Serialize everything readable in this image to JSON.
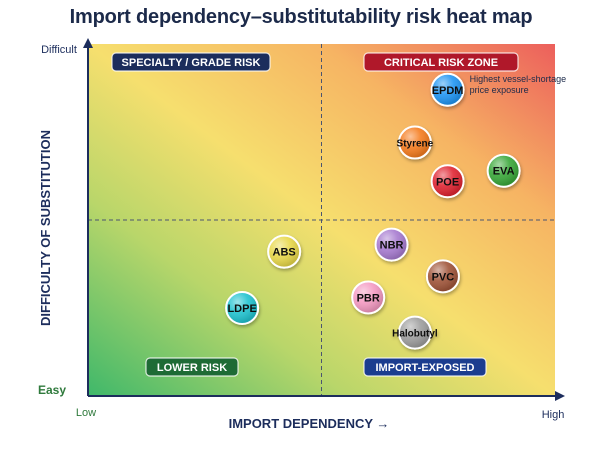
{
  "chart_data": {
    "type": "scatter",
    "title": "Import dependency–substitutability risk heat map",
    "xlabel": "IMPORT DEPENDENCY →",
    "ylabel": "DIFFICULTY OF SUBSTITUTION",
    "x_ticks": {
      "low": "Low",
      "high": "High"
    },
    "y_ticks": {
      "low": "Easy",
      "high": "Difficult"
    },
    "xlim": [
      0,
      100
    ],
    "ylim": [
      0,
      100
    ],
    "grid": false,
    "quadrant_dividers": {
      "x": 50,
      "y": 50
    },
    "quadrants": [
      {
        "label": "SPECIALTY / GRADE RISK",
        "position": "top-left",
        "color": "#1c2d5c"
      },
      {
        "label": "CRITICAL RISK ZONE",
        "position": "top-right",
        "color": "#b0182a"
      },
      {
        "label": "LOWER RISK",
        "position": "bottom-left",
        "color": "#1e6b35"
      },
      {
        "label": "IMPORT-EXPOSED",
        "position": "bottom-right",
        "color": "#1b3d8f"
      }
    ],
    "points": [
      {
        "label": "EPDM",
        "x": 77,
        "y": 87,
        "color": "#2196f3"
      },
      {
        "label": "Styrene",
        "x": 70,
        "y": 72,
        "color": "#f57c1f"
      },
      {
        "label": "POE",
        "x": 77,
        "y": 61,
        "color": "#e02532"
      },
      {
        "label": "EVA",
        "x": 89,
        "y": 64,
        "color": "#3aa83a"
      },
      {
        "label": "NBR",
        "x": 65,
        "y": 43,
        "color": "#a77bd0"
      },
      {
        "label": "ABS",
        "x": 42,
        "y": 41,
        "color": "#e8d84a"
      },
      {
        "label": "PVC",
        "x": 76,
        "y": 34,
        "color": "#a0553a"
      },
      {
        "label": "PBR",
        "x": 60,
        "y": 28,
        "color": "#f49ac2"
      },
      {
        "label": "LDPE",
        "x": 33,
        "y": 25,
        "color": "#21c3d0"
      },
      {
        "label": "Halobutyl",
        "x": 70,
        "y": 18,
        "color": "#9e9e9e"
      }
    ],
    "annotations": [
      {
        "point": "EPDM",
        "lines": [
          "Highest vessel-shortage",
          "price exposure"
        ]
      }
    ]
  }
}
